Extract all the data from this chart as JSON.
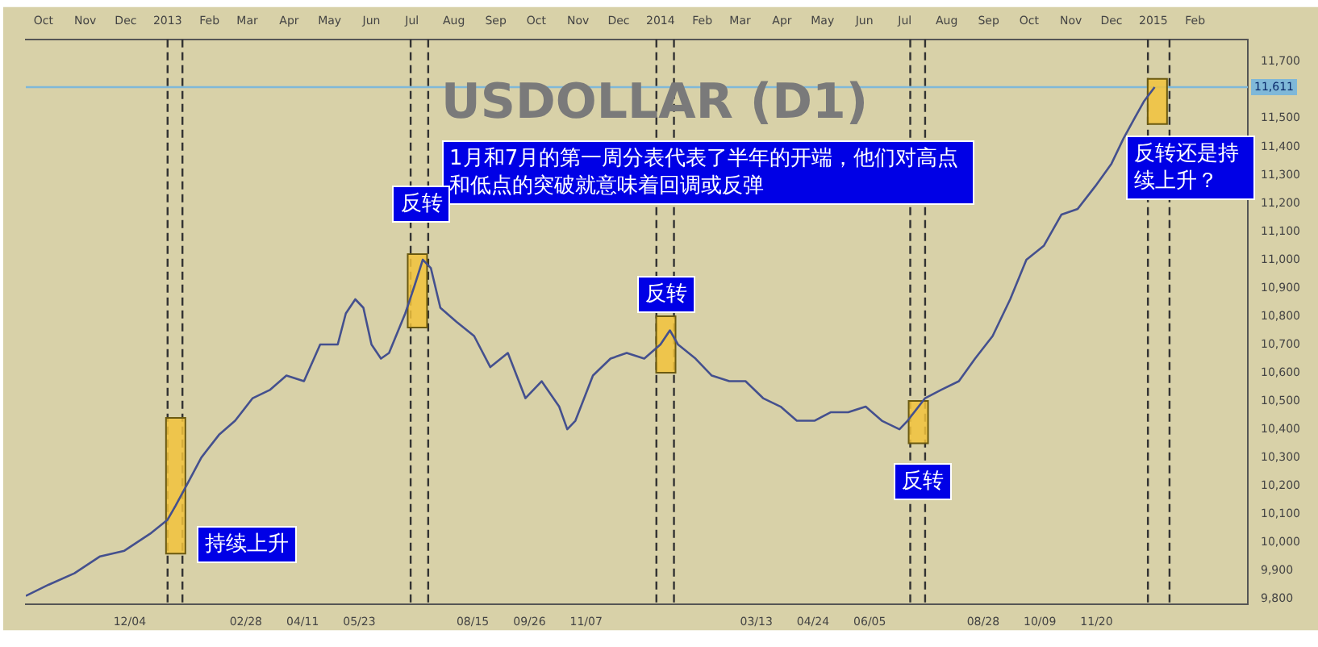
{
  "chart_data": {
    "type": "line",
    "title": "USDOLLAR (D1)",
    "annotations": [
      "1月和7月的第一周分表代表了半年的开端，他们对高点和低点的突破就意味着回调或反弹",
      "反转",
      "反转",
      "反转",
      "持续上升",
      "反转还是持续上升？"
    ],
    "series": [
      {
        "color": "#44508e",
        "x": [
          "2012-09-18",
          "2012-10-05",
          "2012-10-24",
          "2012-11-12",
          "2012-11-30",
          "2012-12-19",
          "2013-01-01",
          "2013-01-07",
          "2013-01-16",
          "2013-01-26",
          "2013-02-08",
          "2013-02-20",
          "2013-03-05",
          "2013-03-18",
          "2013-03-30",
          "2013-04-12",
          "2013-04-24",
          "2013-05-07",
          "2013-05-13",
          "2013-05-20",
          "2013-05-26",
          "2013-06-01",
          "2013-06-08",
          "2013-06-14",
          "2013-06-26",
          "2013-07-03",
          "2013-07-09",
          "2013-07-15",
          "2013-07-22",
          "2013-08-03",
          "2013-08-16",
          "2013-08-28",
          "2013-09-10",
          "2013-09-23",
          "2013-10-05",
          "2013-10-18",
          "2013-10-24",
          "2013-10-30",
          "2013-11-12",
          "2013-11-25",
          "2013-12-07",
          "2013-12-20",
          "2014-01-01",
          "2014-01-08",
          "2014-01-14",
          "2014-01-27",
          "2014-02-08",
          "2014-02-21",
          "2014-03-05",
          "2014-03-18",
          "2014-03-31",
          "2014-04-12",
          "2014-04-25",
          "2014-05-07",
          "2014-05-20",
          "2014-06-02",
          "2014-06-14",
          "2014-06-27",
          "2014-07-03",
          "2014-07-16",
          "2014-07-28",
          "2014-08-10",
          "2014-08-22",
          "2014-09-04",
          "2014-09-17",
          "2014-09-29",
          "2014-10-12",
          "2014-10-25",
          "2014-11-06",
          "2014-11-19",
          "2014-12-01",
          "2014-12-10",
          "2014-12-18",
          "2014-12-25",
          "2015-01-02"
        ],
        "values": [
          9810,
          9850,
          9890,
          9950,
          9970,
          10030,
          10080,
          10130,
          10210,
          10300,
          10380,
          10430,
          10510,
          10540,
          10590,
          10570,
          10700,
          10700,
          10810,
          10860,
          10830,
          10700,
          10650,
          10670,
          10810,
          10910,
          11000,
          10970,
          10830,
          10780,
          10730,
          10620,
          10670,
          10510,
          10570,
          10480,
          10400,
          10430,
          10590,
          10650,
          10670,
          10650,
          10700,
          10750,
          10700,
          10650,
          10590,
          10570,
          10570,
          10510,
          10480,
          10430,
          10430,
          10460,
          10460,
          10480,
          10430,
          10400,
          10430,
          10510,
          10540,
          10570,
          10650,
          10730,
          10860,
          11000,
          11050,
          11160,
          11180,
          11260,
          11340,
          11430,
          11500,
          11560,
          11611
        ]
      },
      {
        "type": "bar",
        "color": "#f2c33c",
        "x": [
          "2013-01-07",
          "2013-07-05",
          "2014-01-05",
          "2014-07-11",
          "2015-01-04"
        ],
        "base": [
          9960,
          10760,
          10600,
          10350,
          11480
        ],
        "values": [
          480,
          260,
          200,
          150,
          160
        ]
      }
    ],
    "xlim": [
      "2012-09-18",
      "2015-03-12"
    ],
    "xticks": [
      {
        "value": "2012-12-04",
        "label": "12/04"
      },
      {
        "value": "2013-02-28",
        "label": "02/28"
      },
      {
        "value": "2013-04-11",
        "label": "04/11"
      },
      {
        "value": "2013-05-23",
        "label": "05/23"
      },
      {
        "value": "2013-08-15",
        "label": "08/15"
      },
      {
        "value": "2013-09-26",
        "label": "09/26"
      },
      {
        "value": "2013-11-07",
        "label": "11/07"
      },
      {
        "value": "2014-03-13",
        "label": "03/13"
      },
      {
        "value": "2014-04-24",
        "label": "04/24"
      },
      {
        "value": "2014-06-05",
        "label": "06/05"
      },
      {
        "value": "2014-08-28",
        "label": "08/28"
      },
      {
        "value": "2014-10-09",
        "label": "10/09"
      },
      {
        "value": "2014-11-20",
        "label": "11/20"
      }
    ],
    "x2lim": [
      "2012-09-18",
      "2015-03-12"
    ],
    "x2ticks": [
      {
        "value": "2012-10-01",
        "label": "Oct"
      },
      {
        "value": "2012-11-01",
        "label": "Nov"
      },
      {
        "value": "2012-12-01",
        "label": "Dec"
      },
      {
        "value": "2013-01-01",
        "label": "2013"
      },
      {
        "value": "2013-02-01",
        "label": "Feb"
      },
      {
        "value": "2013-03-01",
        "label": "Mar"
      },
      {
        "value": "2013-04-01",
        "label": "Apr"
      },
      {
        "value": "2013-05-01",
        "label": "May"
      },
      {
        "value": "2013-06-01",
        "label": "Jun"
      },
      {
        "value": "2013-07-01",
        "label": "Jul"
      },
      {
        "value": "2013-08-01",
        "label": "Aug"
      },
      {
        "value": "2013-09-01",
        "label": "Sep"
      },
      {
        "value": "2013-10-01",
        "label": "Oct"
      },
      {
        "value": "2013-11-01",
        "label": "Nov"
      },
      {
        "value": "2013-12-01",
        "label": "Dec"
      },
      {
        "value": "2014-01-01",
        "label": "2014"
      },
      {
        "value": "2014-02-01",
        "label": "Feb"
      },
      {
        "value": "2014-03-01",
        "label": "Mar"
      },
      {
        "value": "2014-04-01",
        "label": "Apr"
      },
      {
        "value": "2014-05-01",
        "label": "May"
      },
      {
        "value": "2014-06-01",
        "label": "Jun"
      },
      {
        "value": "2014-07-01",
        "label": "Jul"
      },
      {
        "value": "2014-08-01",
        "label": "Aug"
      },
      {
        "value": "2014-09-01",
        "label": "Sep"
      },
      {
        "value": "2014-10-01",
        "label": "Oct"
      },
      {
        "value": "2014-11-01",
        "label": "Nov"
      },
      {
        "value": "2014-12-01",
        "label": "Dec"
      },
      {
        "value": "2015-01-01",
        "label": "2015"
      },
      {
        "value": "2015-02-01",
        "label": "Feb"
      }
    ],
    "ylim": [
      9780,
      11780
    ],
    "yticks": [
      {
        "value": 9800,
        "label": "9,800"
      },
      {
        "value": 9900,
        "label": "9,900"
      },
      {
        "value": 10000,
        "label": "10,000"
      },
      {
        "value": 10100,
        "label": "10,100"
      },
      {
        "value": 10200,
        "label": "10,200"
      },
      {
        "value": 10300,
        "label": "10,300"
      },
      {
        "value": 10400,
        "label": "10,400"
      },
      {
        "value": 10500,
        "label": "10,500"
      },
      {
        "value": 10600,
        "label": "10,600"
      },
      {
        "value": 10700,
        "label": "10,700"
      },
      {
        "value": 10800,
        "label": "10,800"
      },
      {
        "value": 10900,
        "label": "10,900"
      },
      {
        "value": 11000,
        "label": "11,000"
      },
      {
        "value": 11100,
        "label": "11,100"
      },
      {
        "value": 11200,
        "label": "11,200"
      },
      {
        "value": 11300,
        "label": "11,300"
      },
      {
        "value": 11400,
        "label": "11,400"
      },
      {
        "value": 11500,
        "label": "11,500"
      },
      {
        "value": 11700,
        "label": "11,700"
      }
    ],
    "ref_lines": [
      {
        "axis": "x",
        "value": "2013-01-01",
        "label": null,
        "color": "#333333",
        "line_style": "dashed"
      },
      {
        "axis": "x",
        "value": "2013-01-12",
        "label": null,
        "color": "#333333",
        "line_style": "dashed"
      },
      {
        "axis": "x",
        "value": "2013-06-30",
        "label": null,
        "color": "#333333",
        "line_style": "dashed"
      },
      {
        "axis": "x",
        "value": "2013-07-13",
        "label": null,
        "color": "#333333",
        "line_style": "dashed"
      },
      {
        "axis": "x",
        "value": "2013-12-29",
        "label": null,
        "color": "#333333",
        "line_style": "dashed"
      },
      {
        "axis": "x",
        "value": "2014-01-11",
        "label": null,
        "color": "#333333",
        "line_style": "dashed"
      },
      {
        "axis": "x",
        "value": "2014-07-05",
        "label": null,
        "color": "#333333",
        "line_style": "dashed"
      },
      {
        "axis": "x",
        "value": "2014-07-16",
        "label": null,
        "color": "#333333",
        "line_style": "dashed"
      },
      {
        "axis": "x",
        "value": "2014-12-28",
        "label": null,
        "color": "#333333",
        "line_style": "dashed"
      },
      {
        "axis": "x",
        "value": "2015-01-13",
        "label": null,
        "color": "#333333",
        "line_style": "dashed"
      },
      {
        "axis": "y",
        "value": 11611,
        "label": "11,611",
        "color": "#7fb8d8",
        "line_style": "solid"
      }
    ],
    "marker": "none",
    "line_style": "solid",
    "legend": false
  }
}
